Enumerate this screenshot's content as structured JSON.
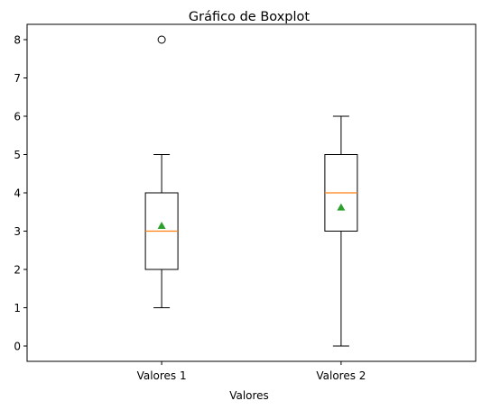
{
  "chart_data": {
    "type": "boxplot",
    "title": "Gráfico de Boxplot",
    "xlabel": "Valores",
    "ylabel": "",
    "ylim": [
      -0.4,
      8.4
    ],
    "yticks": [
      0,
      1,
      2,
      3,
      4,
      5,
      6,
      7,
      8
    ],
    "categories": [
      "Valores 1",
      "Valores 2"
    ],
    "grid": false,
    "series": [
      {
        "category": "Valores 1",
        "whisker_low": 1,
        "q1": 2,
        "median": 3,
        "q3": 4,
        "whisker_high": 5,
        "mean": 3.14,
        "outliers": [
          8
        ]
      },
      {
        "category": "Valores 2",
        "whisker_low": 0,
        "q1": 3,
        "median": 4,
        "q3": 5,
        "whisker_high": 6,
        "mean": 3.62,
        "outliers": []
      }
    ],
    "colors": {
      "box": "#000000",
      "median": "#ff7f0e",
      "mean": "#2ca02c"
    }
  }
}
